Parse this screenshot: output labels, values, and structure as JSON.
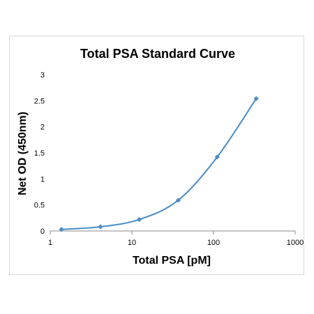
{
  "chart_data": {
    "type": "scatter",
    "title": "Total PSA Standard Curve",
    "xlabel": "Total PSA [pM]",
    "ylabel": "Net OD (450nm)",
    "x_scale": "log",
    "xlim": [
      1,
      1000
    ],
    "ylim": [
      0,
      3
    ],
    "x_ticks": [
      1,
      10,
      100,
      1000
    ],
    "x_tick_labels": [
      "1",
      "10",
      "100",
      "1000"
    ],
    "y_ticks": [
      0,
      0.5,
      1,
      1.5,
      2,
      2.5,
      3
    ],
    "y_tick_labels": [
      "0",
      "0.5",
      "1",
      "1.5",
      "2",
      "2.5",
      "3"
    ],
    "grid": false,
    "legend": "none",
    "line": "smoothed",
    "marker": "diamond",
    "color": "#4a8cc7",
    "series": [
      {
        "x": [
          1.37,
          4.12,
          12.3,
          37.0,
          111,
          333
        ],
        "y": [
          0.03,
          0.08,
          0.22,
          0.59,
          1.42,
          2.54
        ]
      }
    ]
  }
}
